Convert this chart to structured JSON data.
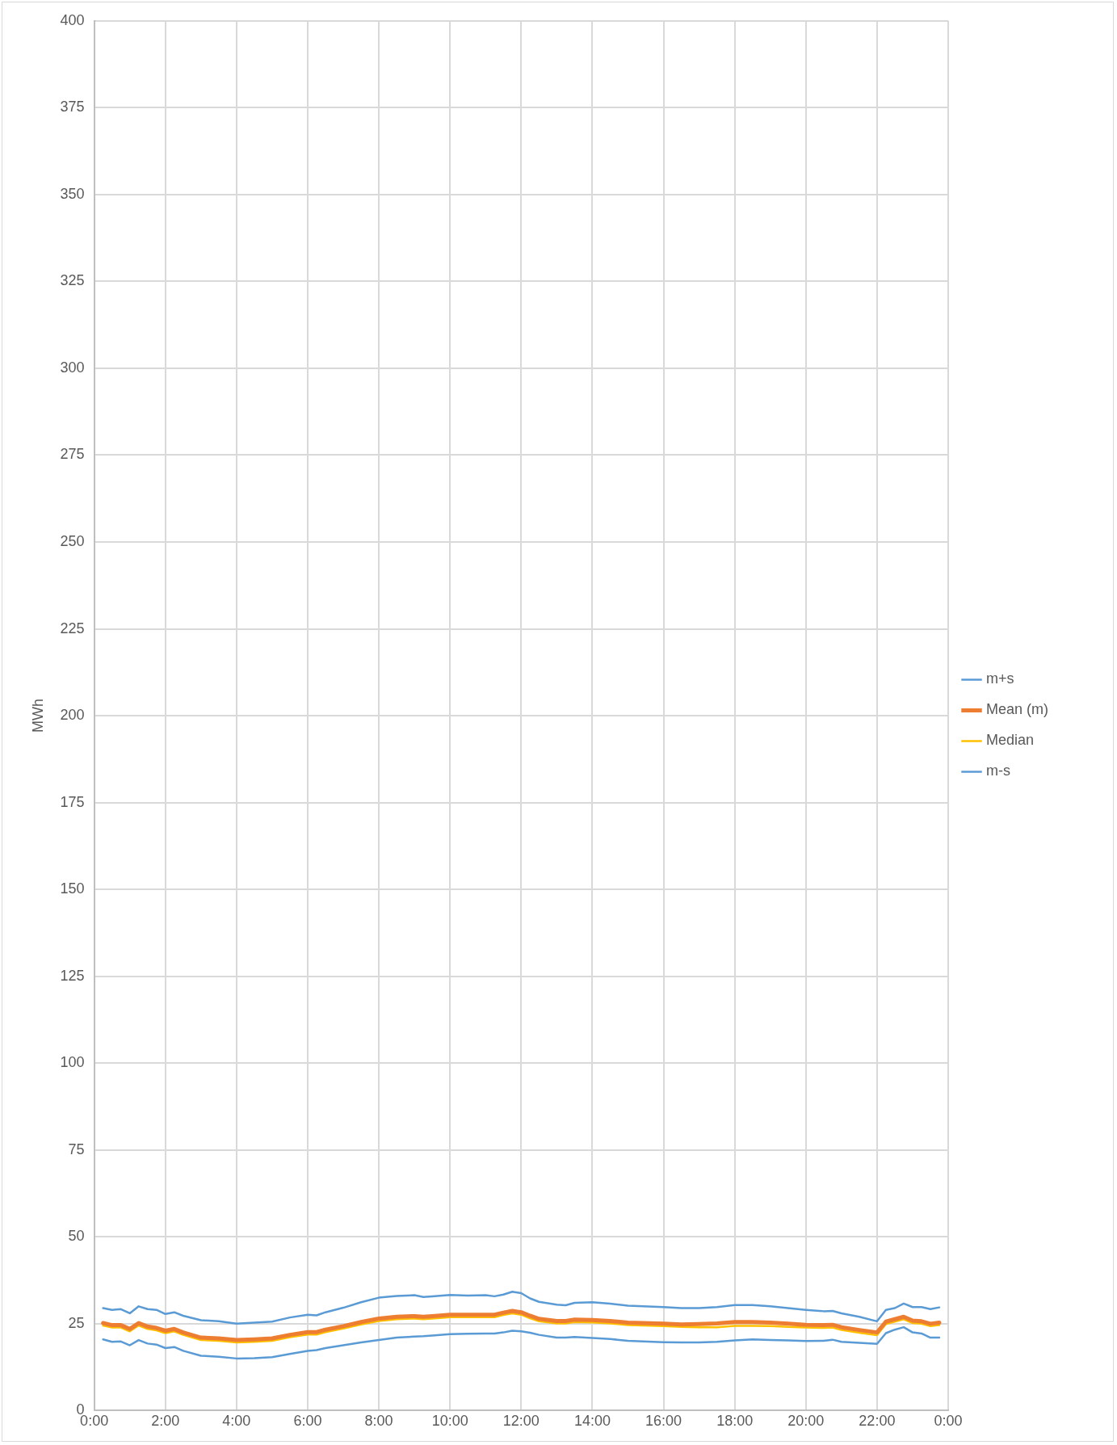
{
  "chart_data": {
    "type": "line",
    "ylabel": "MWh",
    "x": [
      0.25,
      0.5,
      0.75,
      1,
      1.25,
      1.5,
      1.75,
      2,
      2.25,
      2.5,
      3,
      3.5,
      4,
      4.5,
      5,
      5.5,
      6,
      6.25,
      6.5,
      7,
      7.5,
      8,
      8.5,
      9,
      9.25,
      9.5,
      10,
      10.5,
      11,
      11.25,
      11.5,
      11.75,
      12,
      12.25,
      12.5,
      13,
      13.25,
      13.5,
      14,
      14.5,
      15,
      16,
      16.5,
      17,
      17.5,
      18,
      18.5,
      19,
      19.5,
      20,
      20.5,
      20.75,
      21,
      21.5,
      22,
      22.25,
      22.5,
      22.75,
      23,
      23.25,
      23.5,
      23.75
    ],
    "series": [
      {
        "name": "m+s",
        "color": "#5b9bd5",
        "values": [
          29.5,
          29,
          29.2,
          28,
          30,
          29.2,
          29,
          27.8,
          28.3,
          27.3,
          26,
          25.7,
          25,
          25.3,
          25.6,
          26.8,
          27.6,
          27.4,
          28.3,
          29.6,
          31.2,
          32.5,
          33,
          33.2,
          32.7,
          32.9,
          33.3,
          33.1,
          33.2,
          32.9,
          33.4,
          34.2,
          33.8,
          32.3,
          31.3,
          30.5,
          30.3,
          31,
          31.2,
          30.8,
          30.2,
          29.8,
          29.5,
          29.5,
          29.8,
          30.4,
          30.4,
          30,
          29.5,
          29,
          28.6,
          28.7,
          28,
          27,
          25.7,
          29,
          29.5,
          30.8,
          29.8,
          29.8,
          29.2,
          29.7
        ]
      },
      {
        "name": "Mean (m)",
        "color": "#ed7d31",
        "values": [
          25.2,
          24.6,
          24.6,
          23.5,
          25.2,
          24.2,
          23.8,
          23,
          23.5,
          22.5,
          21,
          20.8,
          20.3,
          20.5,
          20.8,
          21.8,
          22.6,
          22.6,
          23.3,
          24.3,
          25.5,
          26.5,
          27,
          27.2,
          27,
          27.2,
          27.6,
          27.6,
          27.6,
          27.6,
          28.2,
          28.7,
          28.3,
          27.3,
          26.4,
          25.8,
          25.8,
          26.2,
          26.1,
          25.8,
          25.3,
          25,
          24.8,
          24.9,
          25.1,
          25.5,
          25.5,
          25.3,
          25,
          24.7,
          24.6,
          24.7,
          24,
          23.2,
          22.5,
          25.6,
          26.3,
          27,
          25.9,
          25.7,
          25,
          25.3
        ]
      },
      {
        "name": "Median",
        "color": "#ffc000",
        "values": [
          24.5,
          23.9,
          23.9,
          22.8,
          24.5,
          23.5,
          23.1,
          22.3,
          22.8,
          21.8,
          20.3,
          20.1,
          19.6,
          19.8,
          20.1,
          21.1,
          21.9,
          21.9,
          22.6,
          23.6,
          24.8,
          25.8,
          26.3,
          26.5,
          26.3,
          26.5,
          26.9,
          26.9,
          26.9,
          26.9,
          27.5,
          28.0,
          27.6,
          26.6,
          25.7,
          25.1,
          25.1,
          25.5,
          25.4,
          25.1,
          24.6,
          24.3,
          24.1,
          24.0,
          24.0,
          24.4,
          24.4,
          24.3,
          24.1,
          23.9,
          23.8,
          23.9,
          23.2,
          22.4,
          21.7,
          24.9,
          25.6,
          26.3,
          25.2,
          25.0,
          24.3,
          24.6
        ]
      },
      {
        "name": "m-s",
        "color": "#5b9bd5",
        "values": [
          20.5,
          19.8,
          19.9,
          18.8,
          20.3,
          19.3,
          19,
          18,
          18.3,
          17.2,
          15.8,
          15.5,
          15,
          15.1,
          15.4,
          16.3,
          17.2,
          17.4,
          18,
          18.8,
          19.6,
          20.3,
          21,
          21.3,
          21.4,
          21.6,
          22,
          22.1,
          22.2,
          22.2,
          22.5,
          23,
          22.8,
          22.4,
          21.8,
          21,
          21,
          21.2,
          20.9,
          20.6,
          20.1,
          19.7,
          19.6,
          19.6,
          19.8,
          20.2,
          20.5,
          20.3,
          20.2,
          20,
          20.1,
          20.4,
          19.8,
          19.5,
          19.2,
          22.3,
          23.3,
          24,
          22.5,
          22.2,
          21,
          21
        ]
      }
    ],
    "xlim": [
      0,
      24
    ],
    "xticks": [
      {
        "value": 0,
        "label": "0:00"
      },
      {
        "value": 2,
        "label": "2:00"
      },
      {
        "value": 4,
        "label": "4:00"
      },
      {
        "value": 6,
        "label": "6:00"
      },
      {
        "value": 8,
        "label": "8:00"
      },
      {
        "value": 10,
        "label": "10:00"
      },
      {
        "value": 12,
        "label": "12:00"
      },
      {
        "value": 14,
        "label": "14:00"
      },
      {
        "value": 16,
        "label": "16:00"
      },
      {
        "value": 18,
        "label": "18:00"
      },
      {
        "value": 20,
        "label": "20:00"
      },
      {
        "value": 22,
        "label": "22:00"
      },
      {
        "value": 24,
        "label": "0:00"
      }
    ],
    "ylim": [
      0,
      400
    ],
    "yticks": [
      0,
      25,
      50,
      75,
      100,
      125,
      150,
      175,
      200,
      225,
      250,
      275,
      300,
      325,
      350,
      375,
      400
    ],
    "grid": true,
    "legend": "right",
    "marker": "none",
    "line_style": "solid"
  }
}
